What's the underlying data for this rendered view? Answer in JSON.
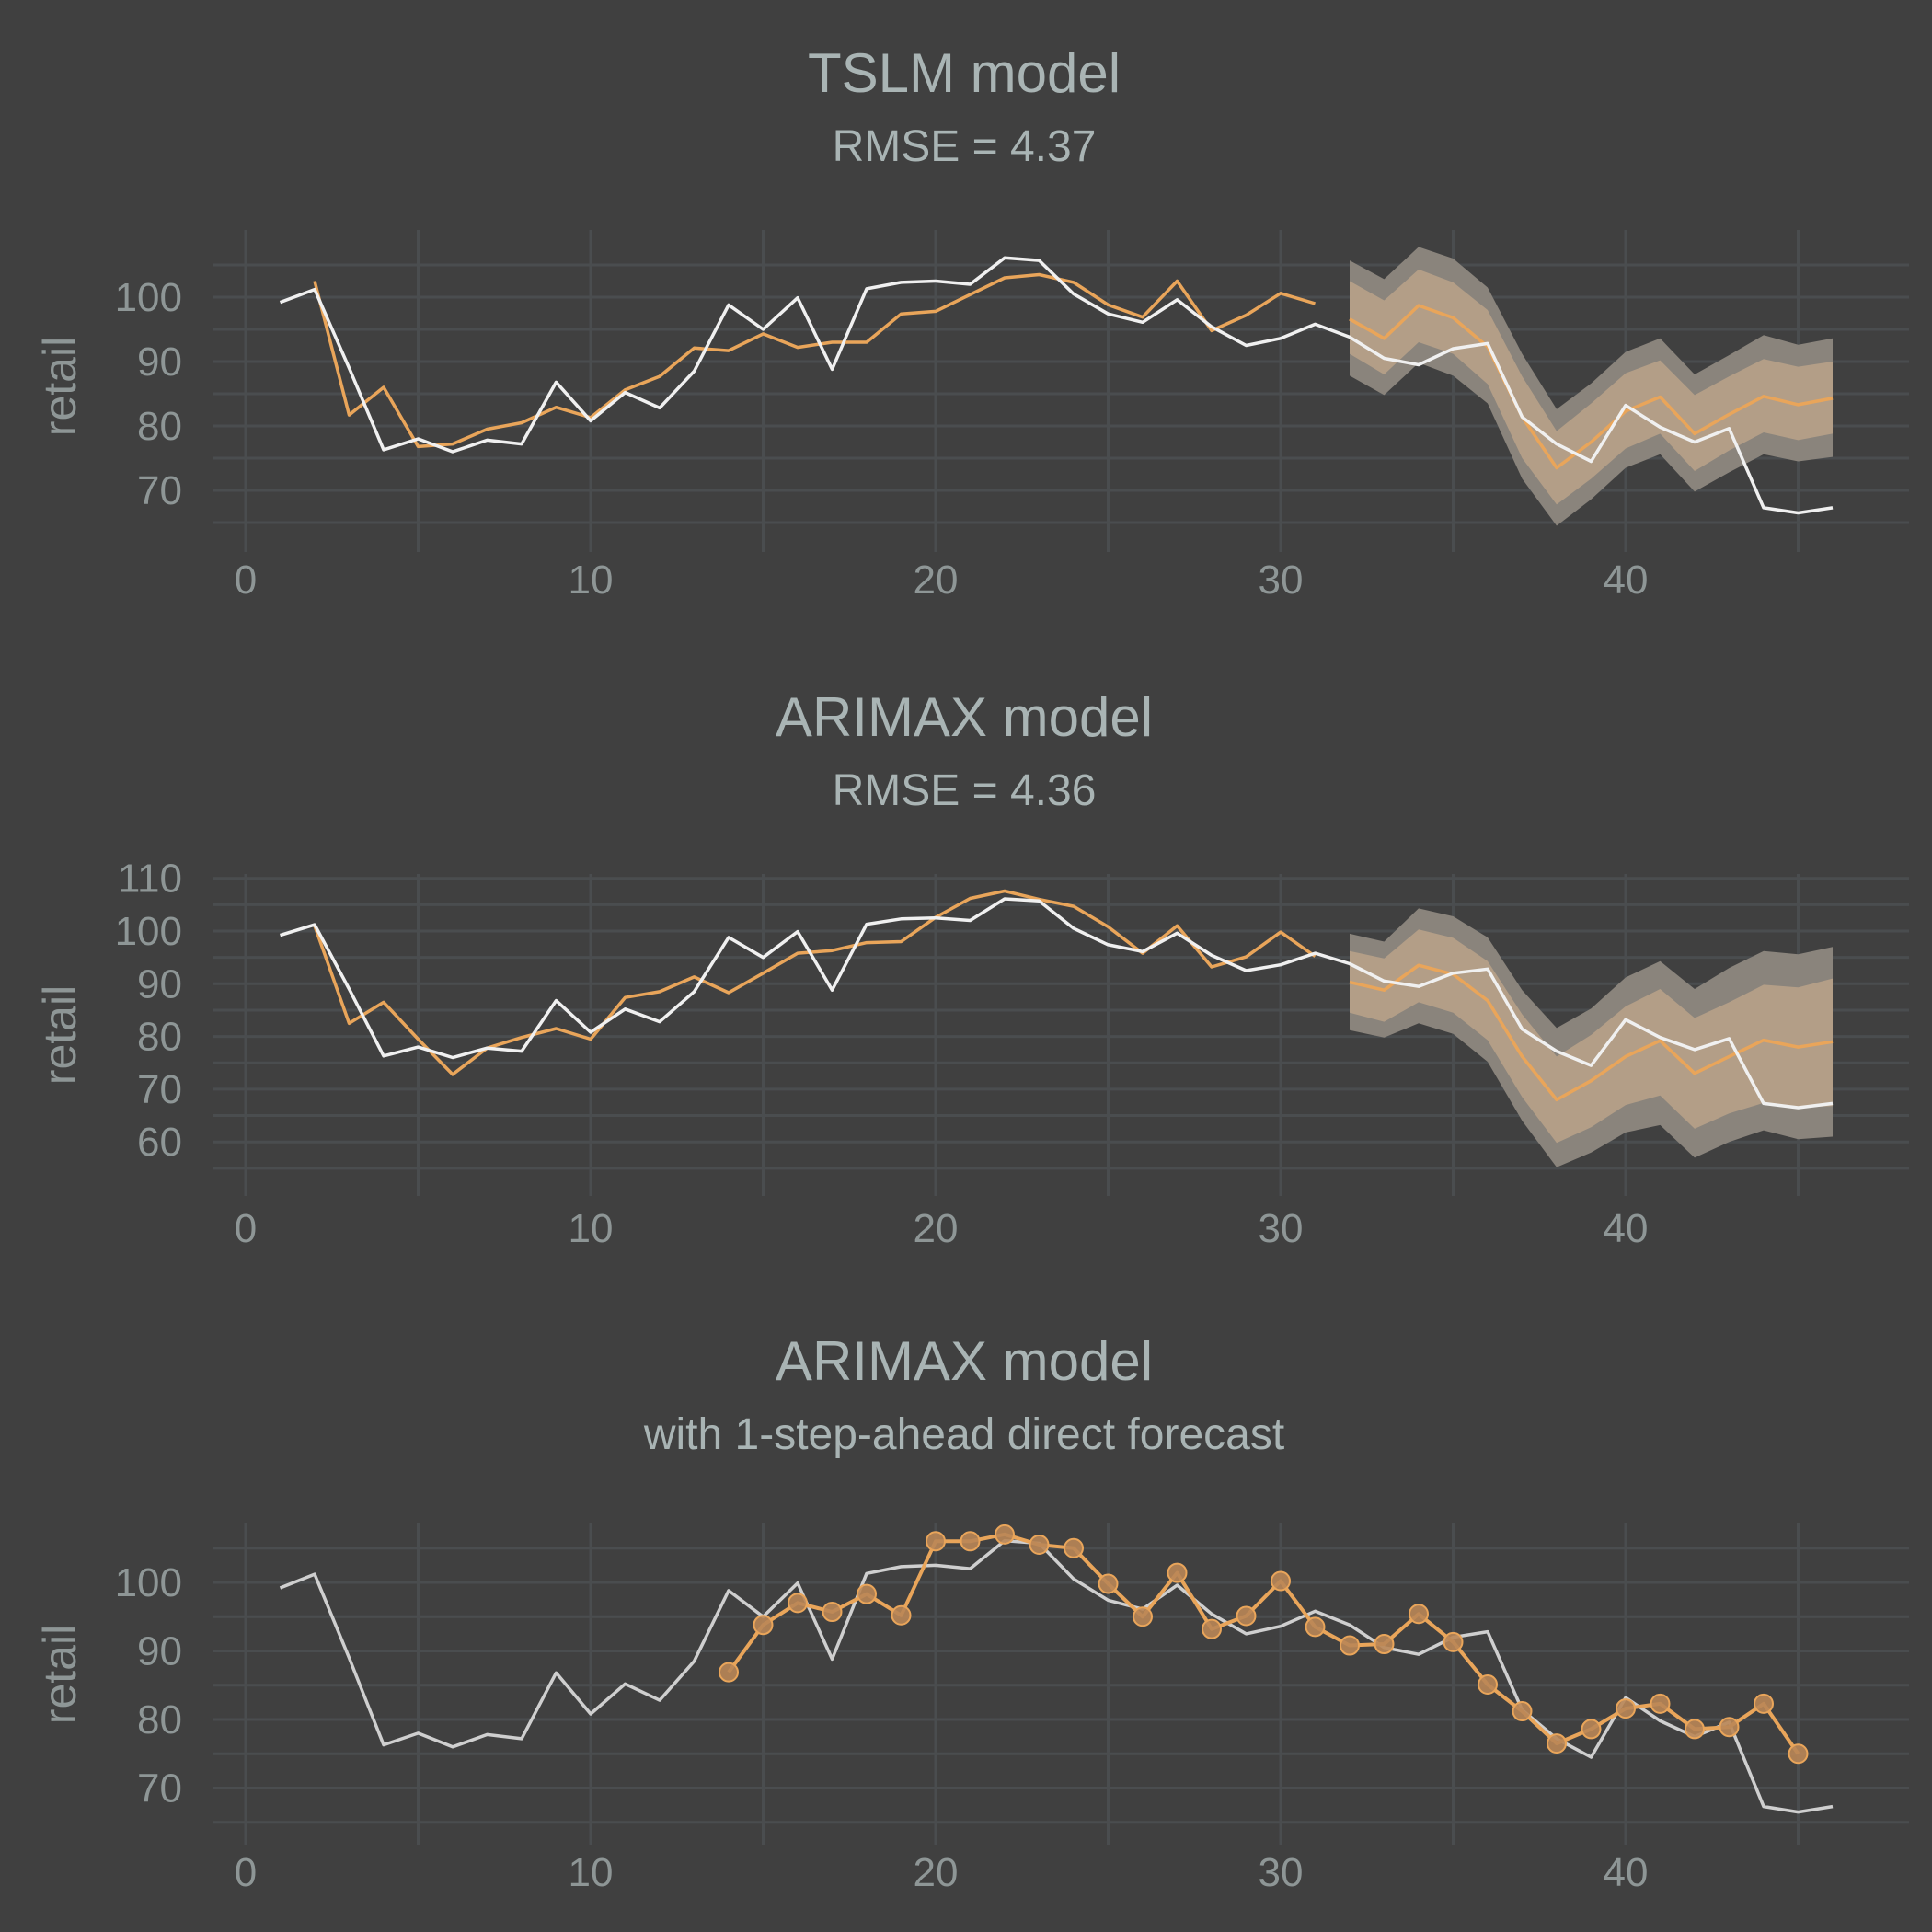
{
  "colors": {
    "background": "#404040",
    "actual": "#f0f0f0",
    "actual_dim": "#cfcfcf",
    "forecast": "#e9a55a",
    "band95": "#8a847c",
    "band80": "#b39e87"
  },
  "chart_data": [
    {
      "type": "line",
      "title": "TSLM model",
      "subtitle": "RMSE = 4.37",
      "xlabel": "",
      "ylabel": "retail",
      "xlim": [
        0,
        48
      ],
      "ylim": [
        62,
        110
      ],
      "xticks": [
        0,
        10,
        20,
        30,
        40
      ],
      "yticks": [
        70,
        80,
        90,
        100
      ],
      "grid": true,
      "legend": "none",
      "actual": {
        "x": [
          1,
          2,
          3,
          4,
          5,
          6,
          7,
          8,
          9,
          10,
          11,
          12,
          13,
          14,
          15,
          16,
          17,
          18,
          19,
          20,
          21,
          22,
          23,
          24,
          25,
          26,
          27,
          28,
          29,
          30,
          31,
          32,
          33,
          34,
          35,
          36,
          37,
          38,
          39,
          40,
          41,
          42,
          43,
          44,
          45,
          46
        ],
        "y": [
          99.2,
          101.2,
          89,
          76.3,
          78,
          76,
          77.8,
          77.2,
          86.8,
          80.8,
          85.2,
          82.8,
          88.5,
          98.8,
          95,
          99.9,
          88.8,
          101.3,
          102.3,
          102.5,
          102,
          106.1,
          105.7,
          100.5,
          97.4,
          96.1,
          99.6,
          95.4,
          92.5,
          93.6,
          95.8,
          93.8,
          90.5,
          89.5,
          92,
          92.8,
          81.4,
          77.2,
          74.5,
          83.2,
          79.8,
          77.5,
          79.6,
          67.3,
          66.5,
          67.3
        ]
      },
      "fitted": {
        "x": [
          1,
          2,
          3,
          4,
          5,
          6,
          7,
          8,
          9,
          10,
          11,
          12,
          13,
          14,
          15,
          16,
          17,
          18,
          19,
          20,
          21,
          22,
          23,
          24,
          25,
          26,
          27,
          28,
          29,
          30,
          31
        ],
        "y": [
          null,
          102.5,
          81.7,
          86,
          76.8,
          77.2,
          79.5,
          80.5,
          82.9,
          81.3,
          85.6,
          87.7,
          92.1,
          91.7,
          94.3,
          92.2,
          93,
          93,
          97.4,
          97.8,
          100.4,
          103,
          103.5,
          102.3,
          98.8,
          96.9,
          102.5,
          94.8,
          97.2,
          100.6,
          99
        ]
      },
      "forecast": {
        "x": [
          32,
          33,
          34,
          35,
          36,
          37,
          38,
          39,
          40,
          41,
          42,
          43,
          44,
          45,
          46
        ],
        "mean": [
          96.6,
          93.6,
          98.7,
          96.8,
          92.3,
          81.4,
          73.5,
          77.5,
          82.3,
          84.5,
          78.8,
          81.8,
          84.6,
          83.3,
          84.3
        ],
        "lo80": [
          91.2,
          88,
          93,
          91.2,
          86.5,
          75,
          67.8,
          71.8,
          76.5,
          78.8,
          73,
          76.2,
          79,
          77.8,
          78.8
        ],
        "hi80": [
          102.5,
          99.5,
          104.3,
          102.3,
          98,
          87.7,
          79.2,
          83.5,
          88.2,
          90.2,
          84.8,
          87.7,
          90.4,
          89.2,
          90
        ],
        "lo95": [
          87.8,
          84.8,
          89.8,
          87.8,
          83.5,
          71.8,
          64.5,
          68.6,
          73.5,
          75.6,
          69.8,
          72.8,
          75.6,
          74.5,
          75.2
        ],
        "hi95": [
          105.7,
          102.8,
          107.8,
          106,
          101.5,
          91.2,
          82.6,
          86.6,
          91.5,
          93.6,
          88,
          91,
          94.1,
          92.6,
          93.6
        ]
      }
    },
    {
      "type": "line",
      "title": "ARIMAX model",
      "subtitle": "RMSE = 4.36",
      "xlabel": "",
      "ylabel": "retail",
      "xlim": [
        0,
        48
      ],
      "ylim": [
        52,
        112
      ],
      "xticks": [
        0,
        10,
        20,
        30,
        40
      ],
      "yticks": [
        60,
        70,
        80,
        90,
        100,
        110
      ],
      "grid": true,
      "legend": "none",
      "actual": {
        "x": [
          1,
          2,
          3,
          4,
          5,
          6,
          7,
          8,
          9,
          10,
          11,
          12,
          13,
          14,
          15,
          16,
          17,
          18,
          19,
          20,
          21,
          22,
          23,
          24,
          25,
          26,
          27,
          28,
          29,
          30,
          31,
          32,
          33,
          34,
          35,
          36,
          37,
          38,
          39,
          40,
          41,
          42,
          43,
          44,
          45,
          46
        ],
        "y": [
          99.2,
          101.2,
          89,
          76.3,
          78,
          76,
          77.8,
          77.2,
          86.8,
          80.8,
          85.2,
          82.8,
          88.5,
          98.8,
          95,
          99.9,
          88.8,
          101.3,
          102.3,
          102.5,
          102,
          106.1,
          105.7,
          100.5,
          97.4,
          96.1,
          99.6,
          95.4,
          92.5,
          93.6,
          95.8,
          93.8,
          90.5,
          89.5,
          92,
          92.8,
          81.4,
          77.2,
          74.5,
          83.2,
          79.8,
          77.5,
          79.6,
          67.3,
          66.5,
          67.3
        ]
      },
      "fitted": {
        "x": [
          1,
          2,
          3,
          4,
          5,
          6,
          7,
          8,
          9,
          10,
          11,
          12,
          13,
          14,
          15,
          16,
          17,
          18,
          19,
          20,
          21,
          22,
          23,
          24,
          25,
          26,
          27,
          28,
          29,
          30,
          31
        ],
        "y": [
          null,
          101,
          82.5,
          86.5,
          79.5,
          72.8,
          77.8,
          79.8,
          81.5,
          79.5,
          87.4,
          88.5,
          91.3,
          88.3,
          92,
          95.8,
          96.3,
          97.8,
          98,
          102.6,
          106.2,
          107.6,
          106,
          104.7,
          100.8,
          95.8,
          101,
          93.2,
          95.1,
          99.8,
          95.2
        ]
      },
      "forecast": {
        "x": [
          32,
          33,
          34,
          35,
          36,
          37,
          38,
          39,
          40,
          41,
          42,
          43,
          44,
          45,
          46
        ],
        "mean": [
          90.3,
          88.8,
          93.5,
          91.8,
          86.8,
          76.2,
          68,
          71.6,
          76.2,
          79.2,
          73,
          76.2,
          79.3,
          78,
          79
        ],
        "lo80": [
          84.5,
          82.8,
          86.5,
          84.5,
          79.3,
          68.5,
          59.8,
          62.8,
          67,
          68.8,
          62.5,
          65.4,
          67.4,
          66.5,
          66.8
        ],
        "hi80": [
          96.2,
          94.8,
          100.3,
          98.7,
          94.3,
          84.2,
          76.2,
          80.3,
          85.7,
          89,
          83.5,
          86.5,
          89.8,
          89.3,
          91
        ],
        "lo95": [
          81.2,
          79.8,
          82.5,
          80.5,
          75.2,
          64,
          55.2,
          58,
          61.8,
          63.2,
          57,
          60,
          62.2,
          60.5,
          61
        ],
        "hi95": [
          99.5,
          98,
          104.3,
          102.8,
          98.8,
          88.8,
          81.6,
          85.3,
          91.2,
          94.3,
          89,
          93,
          96.2,
          95.6,
          97
        ]
      }
    },
    {
      "type": "line",
      "title": "ARIMAX model",
      "subtitle": "with 1-step-ahead direct forecast",
      "xlabel": "",
      "ylabel": "retail",
      "xlim": [
        0,
        48
      ],
      "ylim": [
        63,
        110
      ],
      "xticks": [
        0,
        10,
        20,
        30,
        40
      ],
      "yticks": [
        70,
        80,
        90,
        100
      ],
      "grid": true,
      "legend": "none",
      "actual": {
        "x": [
          1,
          2,
          3,
          4,
          5,
          6,
          7,
          8,
          9,
          10,
          11,
          12,
          13,
          14,
          15,
          16,
          17,
          18,
          19,
          20,
          21,
          22,
          23,
          24,
          25,
          26,
          27,
          28,
          29,
          30,
          31,
          32,
          33,
          34,
          35,
          36,
          37,
          38,
          39,
          40,
          41,
          42,
          43,
          44,
          45,
          46
        ],
        "y": [
          99.2,
          101.2,
          89,
          76.3,
          78,
          76,
          77.8,
          77.2,
          86.8,
          80.8,
          85.2,
          82.8,
          88.5,
          98.8,
          95,
          99.9,
          88.8,
          101.3,
          102.3,
          102.5,
          102,
          106.1,
          105.7,
          100.5,
          97.4,
          96.1,
          99.6,
          95.4,
          92.5,
          93.6,
          95.8,
          93.8,
          90.5,
          89.5,
          92,
          92.8,
          81.4,
          77.2,
          74.5,
          83.2,
          79.8,
          77.5,
          79.6,
          67.3,
          66.5,
          67.3
        ]
      },
      "onestep": {
        "x": [
          14,
          15,
          16,
          17,
          18,
          19,
          20,
          21,
          22,
          23,
          24,
          25,
          26,
          27,
          28,
          29,
          30,
          31,
          32,
          33,
          34,
          35,
          36,
          37,
          38,
          39,
          40,
          41,
          42,
          43,
          44,
          45
        ],
        "y": [
          86.9,
          93.8,
          97,
          95.7,
          98.3,
          95.2,
          106,
          106,
          107,
          105.5,
          105,
          99.8,
          95,
          101.4,
          93.2,
          95.1,
          100.2,
          93.5,
          90.8,
          91,
          95.4,
          91.3,
          85.1,
          81.2,
          76.5,
          78.6,
          81.6,
          82.3,
          78.6,
          78.9,
          82.3,
          75
        ]
      }
    }
  ]
}
